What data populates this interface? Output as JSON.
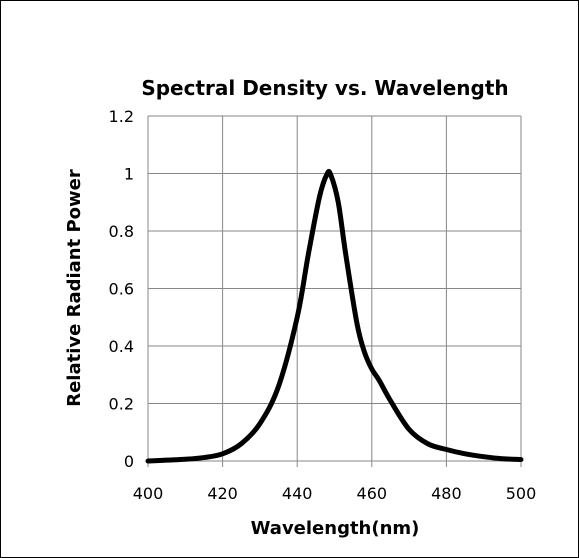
{
  "chart_data": {
    "type": "line",
    "title": "Spectral Density vs. Wavelength",
    "xlabel": "Wavelength(nm)",
    "ylabel": "Relative Radiant Power",
    "xlim": [
      400,
      500
    ],
    "ylim": [
      0,
      1.2
    ],
    "x_ticks": [
      "400",
      "420",
      "440",
      "460",
      "480",
      "500"
    ],
    "y_ticks": [
      "0",
      "0.2",
      "0.4",
      "0.6",
      "0.8",
      "1",
      "1.2"
    ],
    "grid": true,
    "legend": "none",
    "series": [
      {
        "color": "#000000",
        "x": [
          400,
          405,
          410,
          415,
          420,
          425,
          430,
          435,
          440,
          443,
          446,
          448,
          449,
          451,
          453,
          456,
          458,
          460,
          462,
          465,
          470,
          475,
          480,
          485,
          490,
          495,
          500
        ],
        "y": [
          0.0,
          0.003,
          0.006,
          0.012,
          0.025,
          0.06,
          0.13,
          0.26,
          0.5,
          0.72,
          0.92,
          0.998,
          0.995,
          0.9,
          0.72,
          0.48,
          0.38,
          0.32,
          0.28,
          0.21,
          0.11,
          0.06,
          0.04,
          0.025,
          0.015,
          0.008,
          0.005
        ]
      }
    ]
  }
}
